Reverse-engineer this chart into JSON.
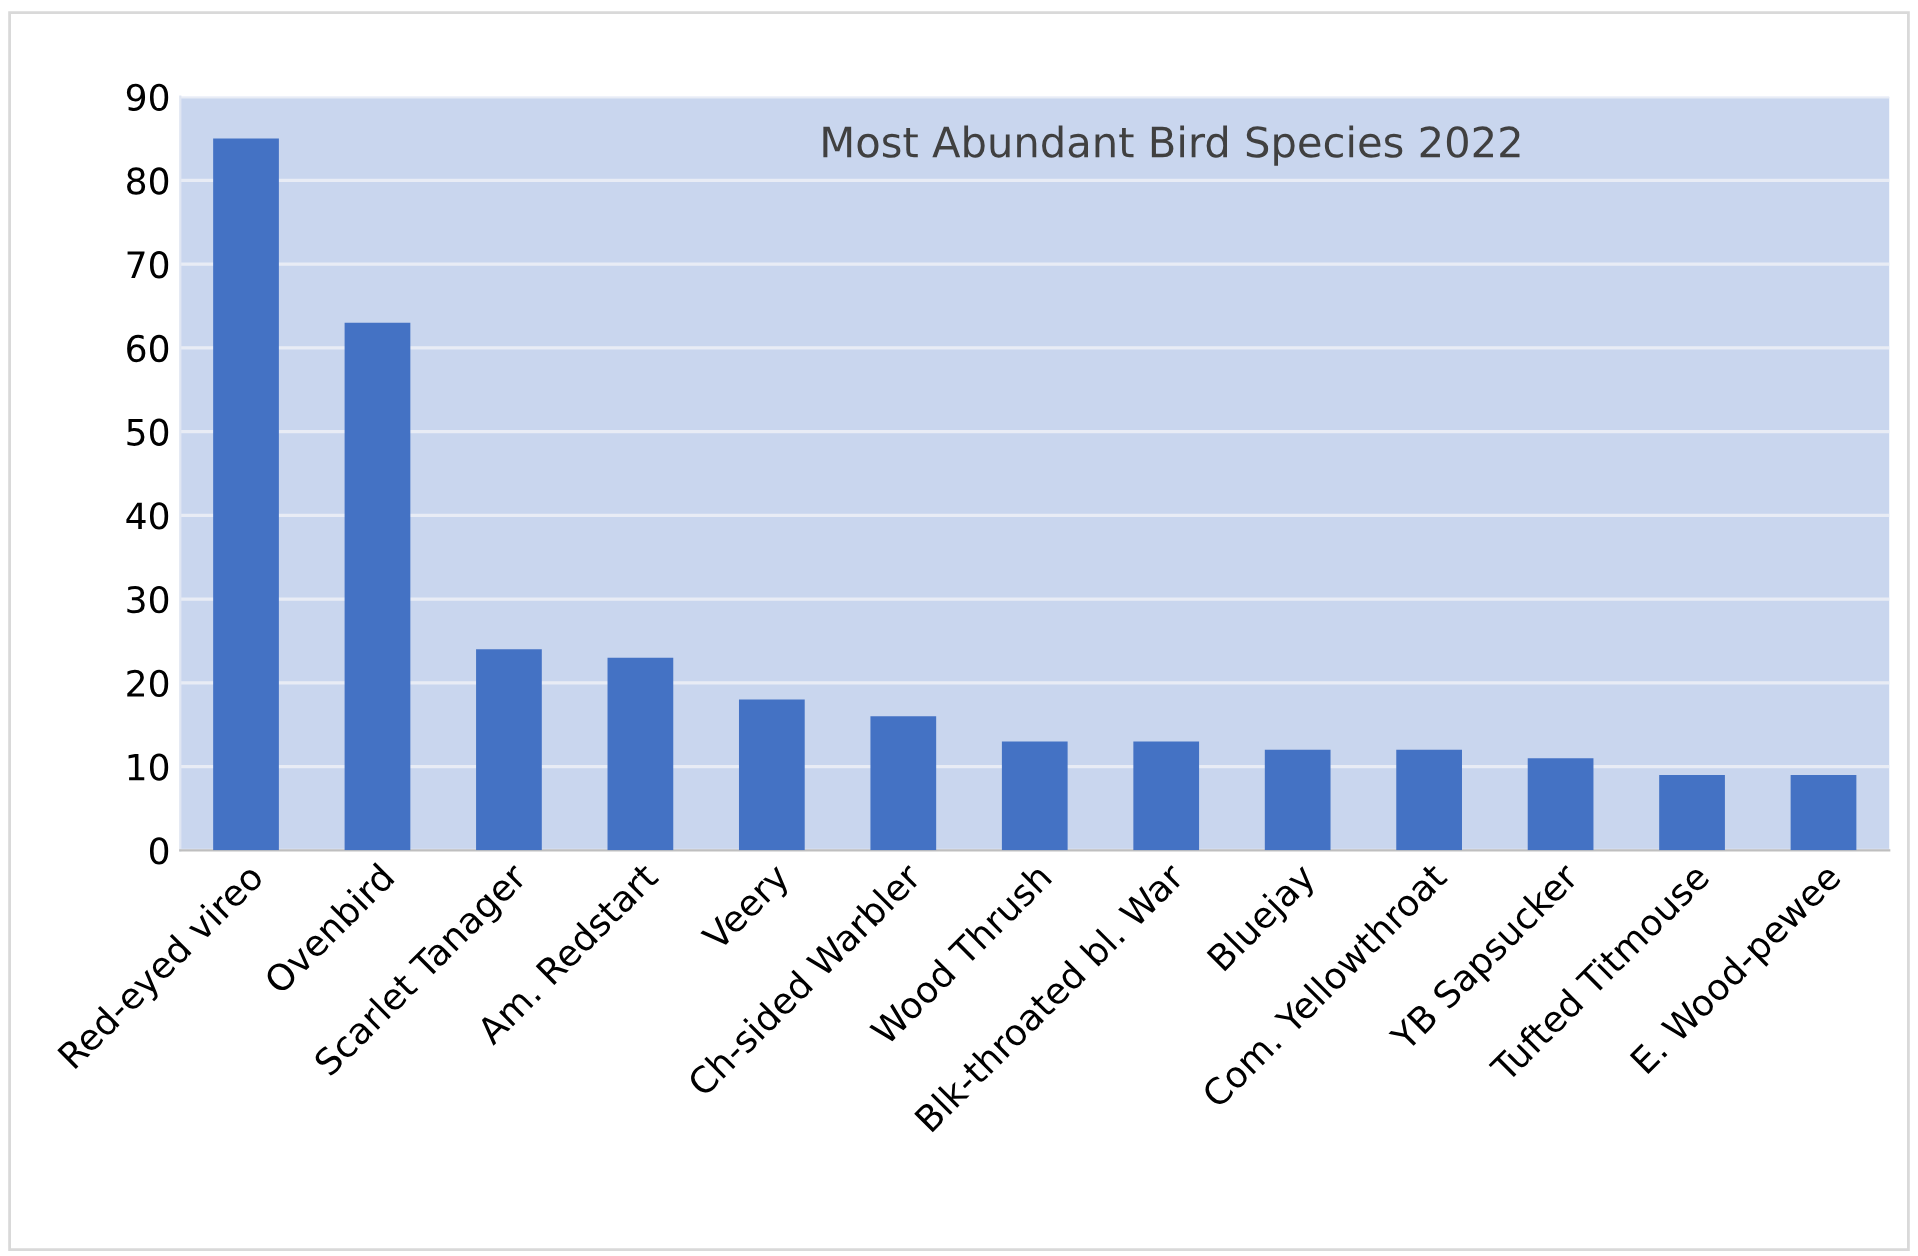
{
  "chart_data": {
    "type": "bar",
    "title": "Most Abundant Bird Species 2022",
    "categories": [
      "Red-eyed vireo",
      "Ovenbird",
      "Scarlet Tanager",
      "Am. Redstart",
      "Veery",
      "Ch-sided Warbler",
      "Wood Thrush",
      "Blk-throated bl. War",
      "Bluejay",
      "Com. Yellowthroat",
      "YB Sapsucker",
      "Tufted Titmouse",
      "E. Wood-pewee"
    ],
    "values": [
      85,
      63,
      24,
      23,
      18,
      16,
      13,
      13,
      12,
      12,
      11,
      9,
      9
    ],
    "color": "#4472c4",
    "ylim": [
      0,
      90
    ],
    "yticks": [
      0,
      10,
      20,
      30,
      40,
      50,
      60,
      70,
      80,
      90
    ],
    "grid": "y"
  }
}
